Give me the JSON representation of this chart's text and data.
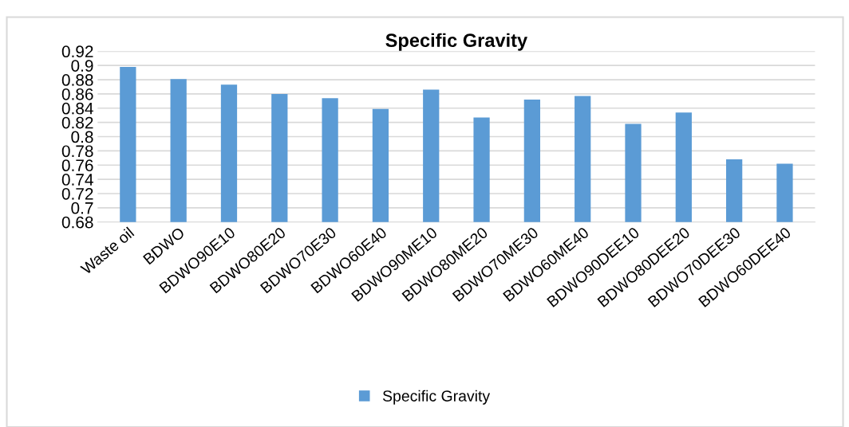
{
  "chart_data": {
    "type": "bar",
    "title": "Specific Gravity",
    "categories": [
      "Waste oil",
      "BDWO",
      "BDWO90E10",
      "BDWO80E20",
      "BDWO70E30",
      "BDWO60E40",
      "BDWO90ME10",
      "BDWO80ME20",
      "BDWO70ME30",
      "BDWO60ME40",
      "BDWO90DEE10",
      "BDWO80DEE20",
      "BDWO70DEE30",
      "BDWO60DEE40"
    ],
    "series": [
      {
        "name": "Specific Gravity",
        "color": "#5b9bd5",
        "values": [
          0.898,
          0.881,
          0.873,
          0.86,
          0.854,
          0.839,
          0.866,
          0.827,
          0.852,
          0.857,
          0.818,
          0.834,
          0.768,
          0.762
        ]
      }
    ],
    "ylim": [
      0.68,
      0.92
    ],
    "yticks": [
      0.68,
      0.7,
      0.72,
      0.74,
      0.76,
      0.78,
      0.8,
      0.82,
      0.84,
      0.86,
      0.88,
      0.9,
      0.92
    ],
    "grid": "y",
    "legend": "bottom"
  }
}
